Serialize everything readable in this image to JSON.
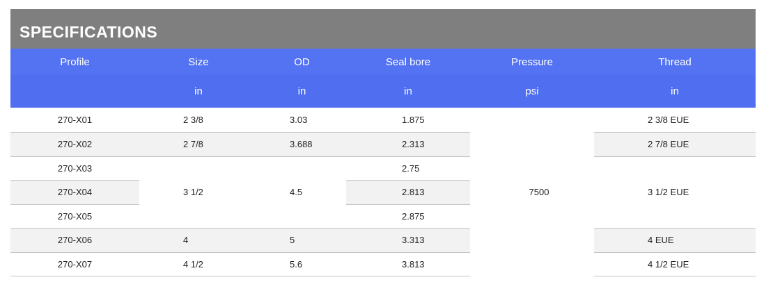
{
  "title": "SPECIFICATIONS",
  "table": {
    "columns": [
      {
        "name": "Profile"
      },
      {
        "name": "Size",
        "unit": "in"
      },
      {
        "name": "OD",
        "unit": "in"
      },
      {
        "name": "Seal bore",
        "unit": "in"
      },
      {
        "name": "Pressure",
        "unit": "psi"
      },
      {
        "name": "Thread",
        "unit": "in"
      }
    ],
    "rows": [
      [
        "270-X01",
        "2 3/8",
        "3.03",
        "1.875",
        "7500",
        "2 3/8 EUE"
      ],
      [
        "270-X02",
        "2 7/8",
        "3.688",
        "2.313",
        "2 7/8 EUE"
      ],
      [
        "270-X03",
        "3 1/2",
        "4.5",
        "2.75",
        "3 1/2 EUE"
      ],
      [
        "270-X04",
        "2.813"
      ],
      [
        "270-X05",
        "2.875"
      ],
      [
        "270-X06",
        "4",
        "5",
        "3.313",
        "4 EUE"
      ],
      [
        "270-X07",
        "4 1/2",
        "5.6",
        "3.813",
        "4 1/2 EUE"
      ]
    ]
  }
}
